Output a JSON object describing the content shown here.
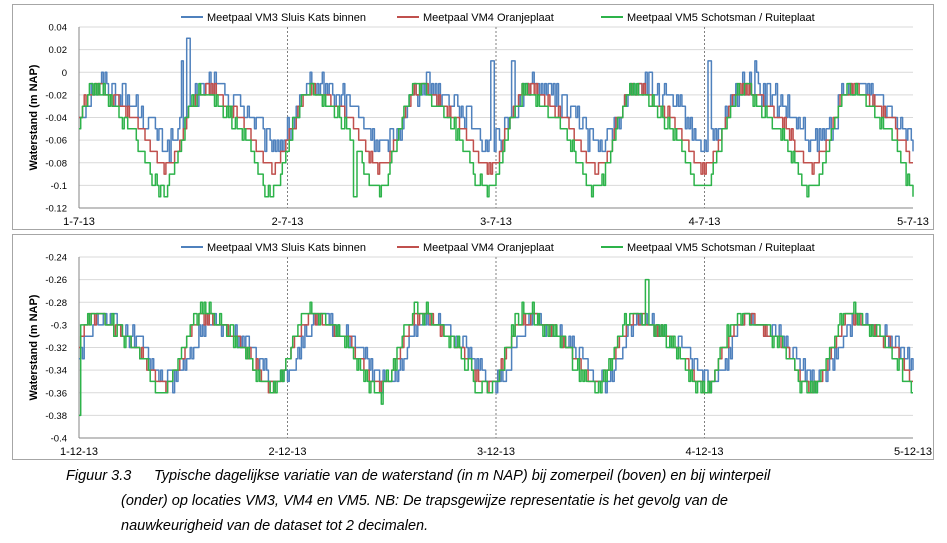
{
  "chart_data": [
    {
      "type": "line",
      "ylabel": "Waterstand (m NAP)",
      "xlabel": "",
      "ylim": [
        -0.12,
        0.04
      ],
      "yticks": [
        -0.12,
        -0.1,
        -0.08,
        -0.06,
        -0.04,
        -0.02,
        0,
        0.02,
        0.04
      ],
      "ytick_labels": [
        "-0.12",
        "-0.1",
        "-0.08",
        "-0.06",
        "-0.04",
        "-0.02",
        "0",
        "0.02",
        "0.04"
      ],
      "xlim": [
        0,
        4
      ],
      "xtick_labels": [
        "1-7-13",
        "2-7-13",
        "3-7-13",
        "4-7-13",
        "5-7-13"
      ],
      "grid": true,
      "legend": "top",
      "tide_period_days": 0.5175,
      "series": [
        {
          "name": "Meetpaal VM3 Sluis Kats binnen",
          "color": "#4f81bd",
          "mean": -0.035,
          "amp": 0.025,
          "phase": 0.02,
          "noise": 0.012,
          "spikes": [
            [
              0.52,
              0.03
            ],
            [
              0.49,
              0.01
            ],
            [
              1.98,
              0.01
            ],
            [
              2.08,
              0.01
            ],
            [
              3.02,
              0.01
            ],
            [
              3.24,
              0.01
            ]
          ]
        },
        {
          "name": "Meetpaal VM4 Oranjeplaat",
          "color": "#c0504d",
          "mean": -0.045,
          "amp": 0.032,
          "phase": 0.0,
          "noise": 0.004,
          "spikes": []
        },
        {
          "name": "Meetpaal VM5 Schotsman / Ruiteplaat",
          "color": "#2db34a",
          "mean": -0.055,
          "amp": 0.04,
          "phase": -0.01,
          "noise": 0.006,
          "spikes": [
            [
              1.32,
              -0.11
            ]
          ]
        }
      ]
    },
    {
      "type": "line",
      "ylabel": "Waterstand (m NAP)",
      "xlabel": "",
      "ylim": [
        -0.4,
        -0.24
      ],
      "yticks": [
        -0.4,
        -0.38,
        -0.36,
        -0.34,
        -0.32,
        -0.3,
        -0.28,
        -0.26,
        -0.24
      ],
      "ytick_labels": [
        "-0.4",
        "-0.38",
        "-0.36",
        "-0.34",
        "-0.32",
        "-0.3",
        "-0.28",
        "-0.26",
        "-0.24"
      ],
      "xlim": [
        0,
        4
      ],
      "xtick_labels": [
        "1-12-13",
        "2-12-13",
        "3-12-13",
        "4-12-13",
        "5-12-13"
      ],
      "grid": true,
      "legend": "top",
      "tide_period_days": 0.5175,
      "series": [
        {
          "name": "Meetpaal VM3 Sluis Kats binnen",
          "color": "#4f81bd",
          "mean": -0.32,
          "amp": 0.025,
          "phase": 0.03,
          "noise": 0.008,
          "spikes": []
        },
        {
          "name": "Meetpaal VM4 Oranjeplaat",
          "color": "#c0504d",
          "mean": -0.32,
          "amp": 0.028,
          "phase": 0.0,
          "noise": 0.004,
          "spikes": []
        },
        {
          "name": "Meetpaal VM5 Schotsman / Ruiteplaat",
          "color": "#2db34a",
          "mean": -0.32,
          "amp": 0.032,
          "phase": -0.01,
          "noise": 0.007,
          "spikes": [
            [
              2.72,
              -0.26
            ],
            [
              0.0,
              -0.38
            ],
            [
              1.45,
              -0.37
            ]
          ]
        }
      ]
    }
  ],
  "caption": {
    "number": "Figuur 3.3",
    "line1": "Typische dagelijkse variatie van de waterstand (in m NAP) bij zomerpeil (boven) en bij winterpeil",
    "line2": "(onder) op locaties VM3, VM4 en VM5. NB: De trapsgewijze representatie is het gevolg van de",
    "line3": "nauwkeurigheid van de dataset tot 2 decimalen."
  }
}
